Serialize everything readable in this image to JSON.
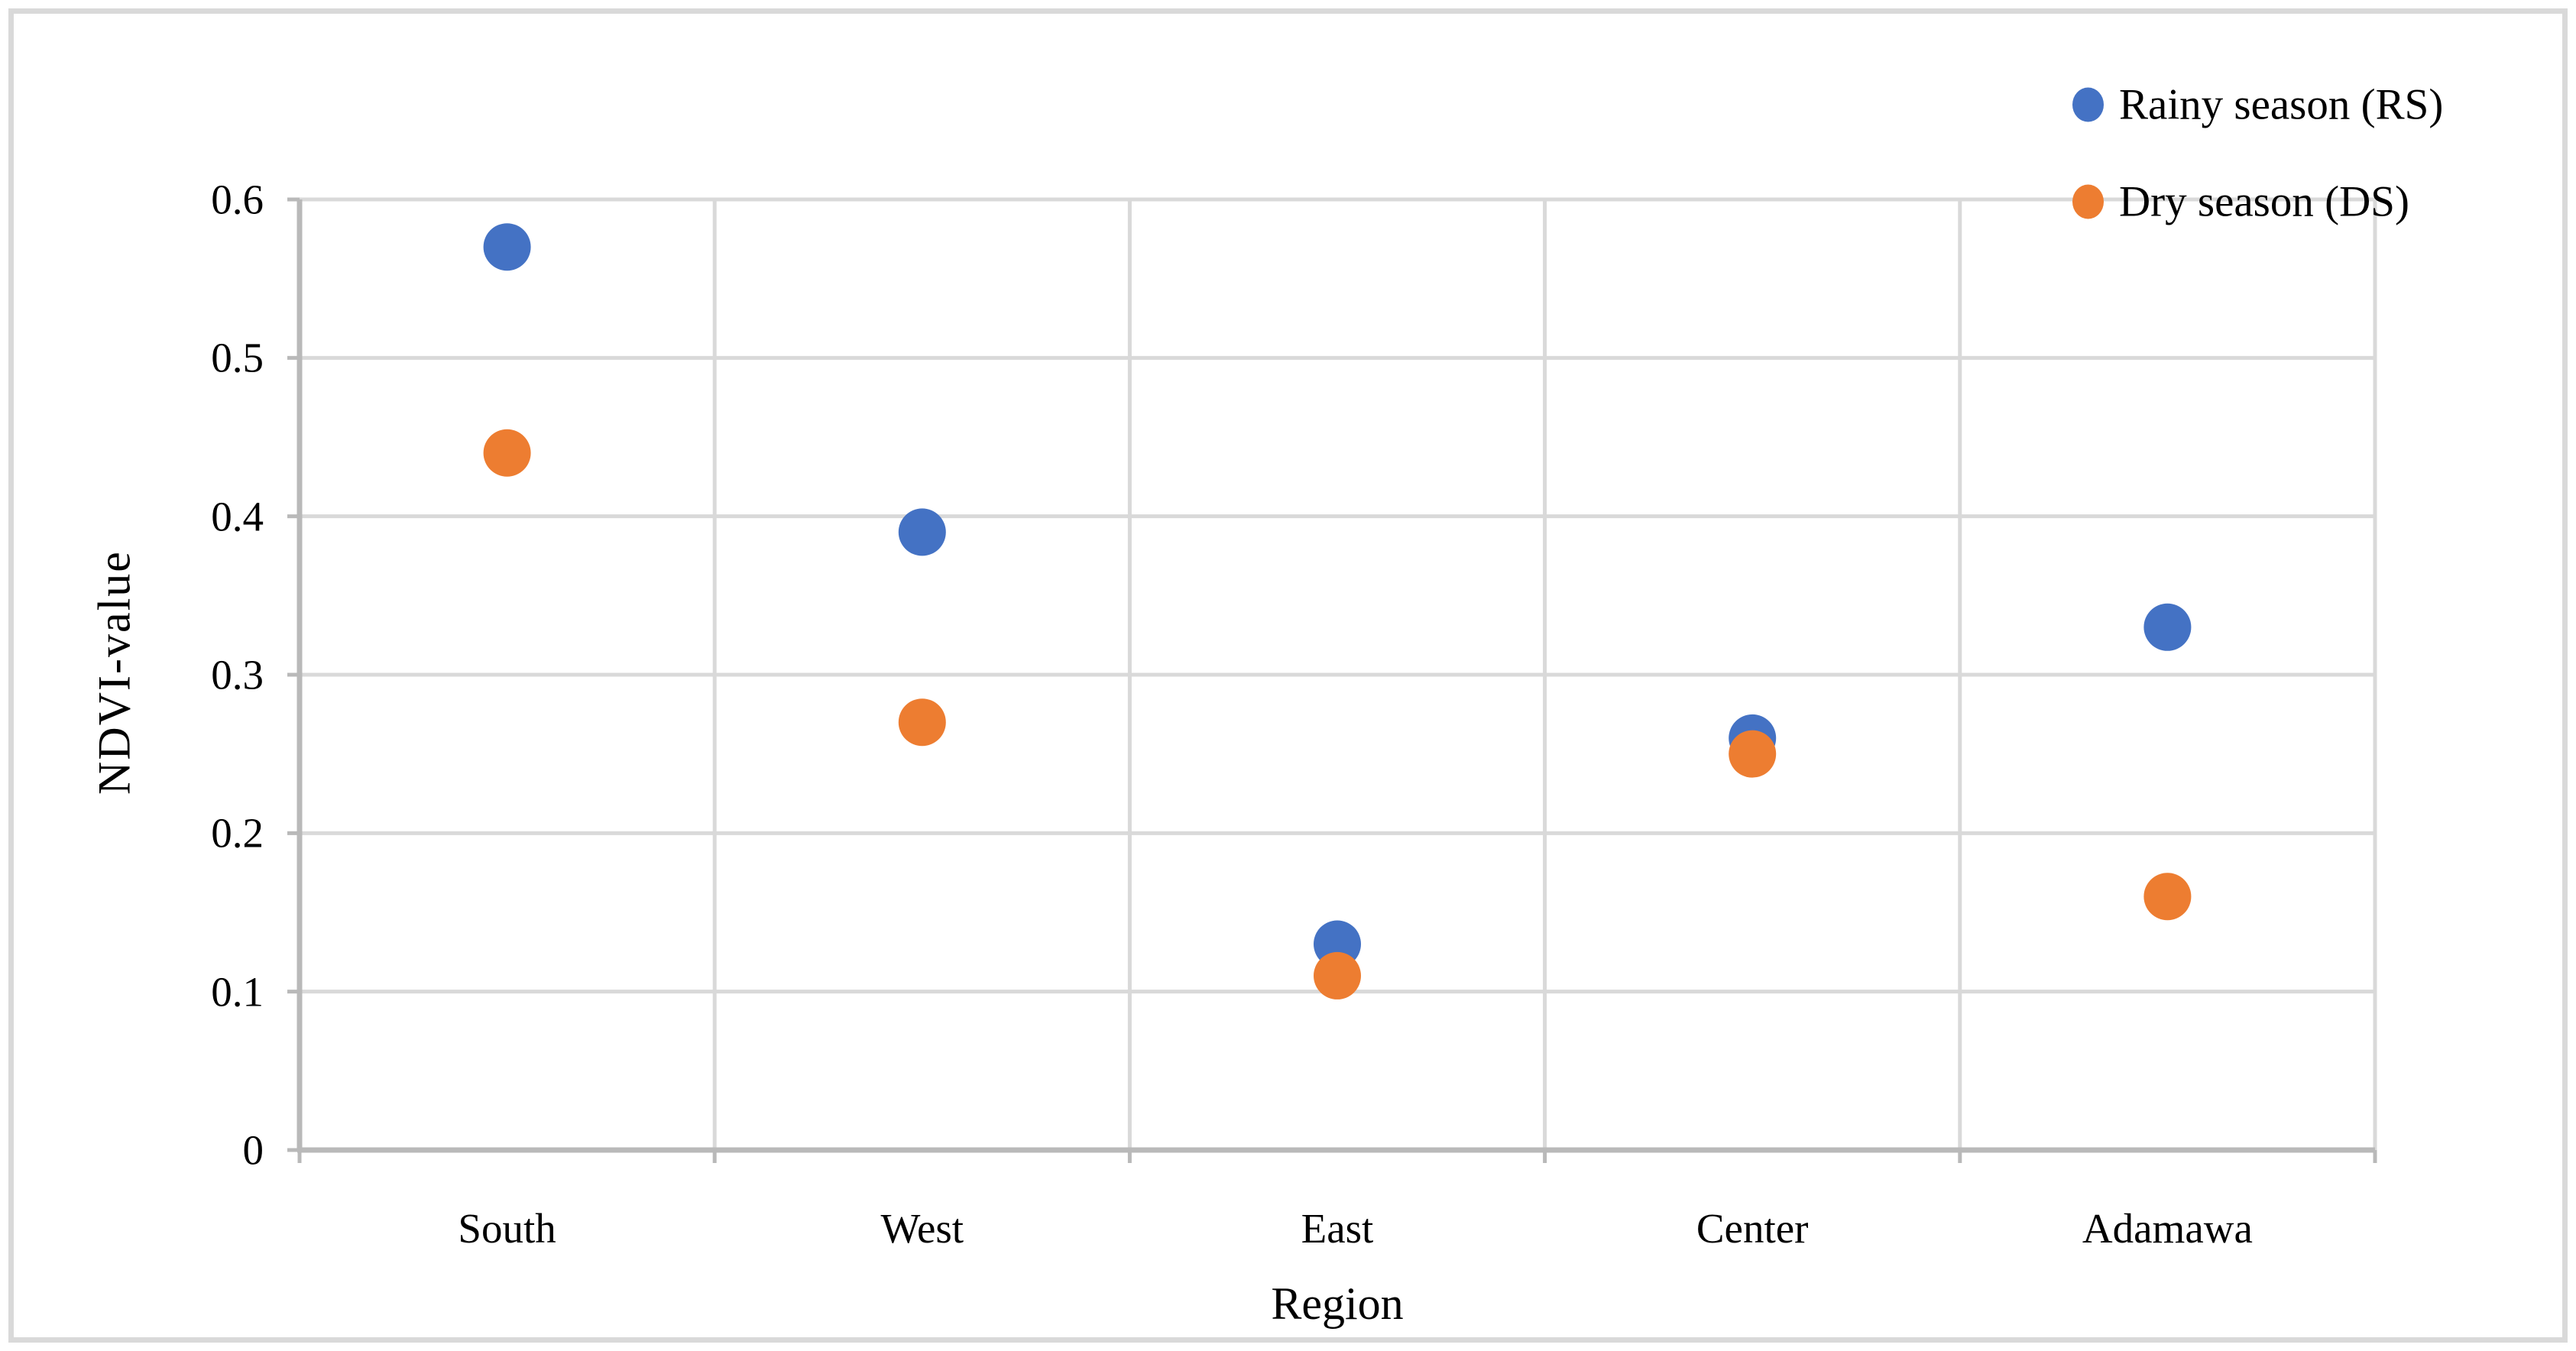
{
  "figure": {
    "background": "#ffffff",
    "border_color": "#d9d9d9"
  },
  "chart_data": {
    "type": "scatter",
    "title": "",
    "xlabel": "Region",
    "ylabel": "NDVI-value",
    "categories": [
      "South",
      "West",
      "East",
      "Center",
      "Adamawa"
    ],
    "series": [
      {
        "name": "Rainy season (RS)",
        "color": "#4472C4",
        "values": [
          0.57,
          0.39,
          0.13,
          0.26,
          0.33
        ]
      },
      {
        "name": "Dry season (DS)",
        "color": "#ED7D31",
        "values": [
          0.44,
          0.27,
          0.11,
          0.25,
          0.16
        ]
      }
    ],
    "ylim": [
      0,
      0.6
    ],
    "y_ticks": [
      "0",
      "0.1",
      "0.2",
      "0.3",
      "0.4",
      "0.5",
      "0.6"
    ],
    "grid": "horizontal gridlines at each y tick; vertical gridlines at category boundaries",
    "legend_position": "top-right",
    "axis_color": "#b9b9b9",
    "gridline_color": "#d9d9d9",
    "marker_shape": "circle"
  }
}
